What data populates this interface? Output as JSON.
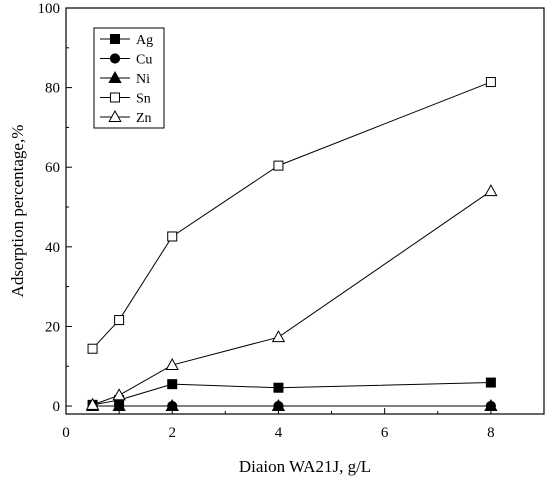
{
  "chart_data": {
    "type": "line",
    "title": "",
    "xlabel": "Diaion WA21J, g/L",
    "ylabel": "Adsorption percentage,%",
    "xlim": [
      0,
      9
    ],
    "ylim": [
      -2,
      100
    ],
    "xticks": [
      0,
      2,
      4,
      6,
      8
    ],
    "yticks": [
      0,
      20,
      40,
      60,
      80,
      100
    ],
    "x": [
      0.5,
      1,
      2,
      4,
      8
    ],
    "grid": false,
    "legend_position": "top-left",
    "series": [
      {
        "name": "Ag",
        "marker": "filled-square",
        "values": [
          0.3,
          1.5,
          5.5,
          4.6,
          5.9
        ]
      },
      {
        "name": "Cu",
        "marker": "filled-circle",
        "values": [
          0.0,
          0.0,
          0.0,
          0.0,
          0.0
        ]
      },
      {
        "name": "Ni",
        "marker": "filled-triangle",
        "values": [
          0.0,
          0.0,
          0.0,
          0.0,
          0.0
        ]
      },
      {
        "name": "Sn",
        "marker": "open-square",
        "values": [
          14.4,
          21.6,
          42.6,
          60.4,
          81.4
        ]
      },
      {
        "name": "Zn",
        "marker": "open-triangle",
        "values": [
          0.3,
          2.7,
          10.3,
          17.3,
          54.0
        ]
      }
    ],
    "colors": {
      "line": "#000000",
      "marker": "#000000",
      "open_fill": "#ffffff"
    }
  }
}
